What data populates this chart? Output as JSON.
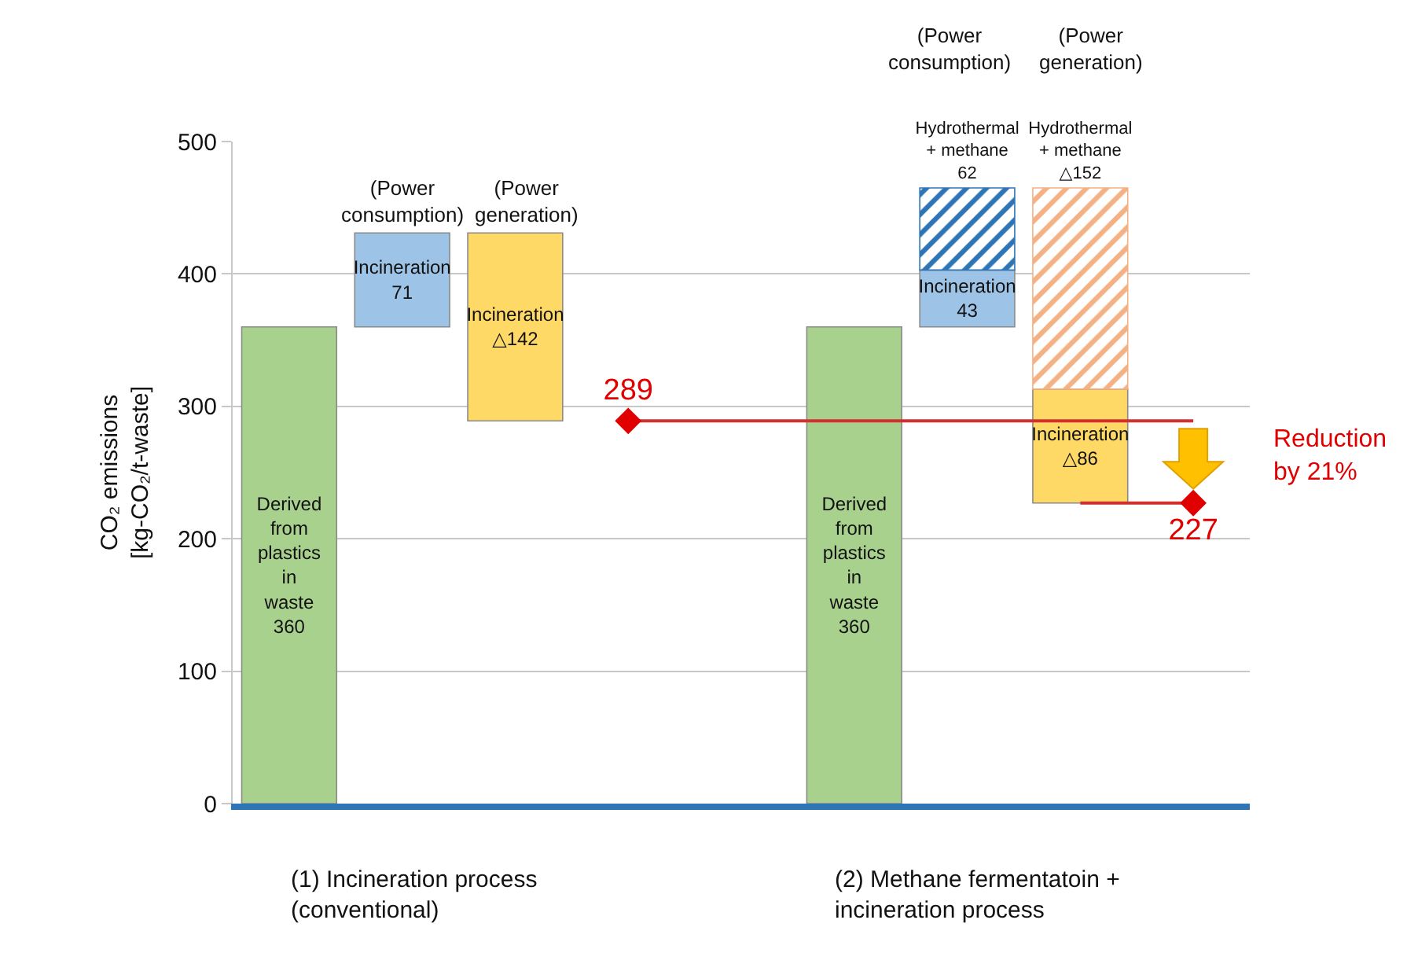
{
  "chart_data": {
    "type": "bar",
    "ylabel": "CO₂ emissions\n[kg-CO₂/t-waste]",
    "categories": [
      null,
      null,
      null,
      null,
      null,
      null,
      null,
      null,
      null
    ],
    "ylim": [
      0,
      500
    ],
    "yticks": [
      0,
      100,
      200,
      300,
      400,
      500
    ],
    "grid": "y",
    "series": [
      {
        "type": "line",
        "color": "#d32f2f",
        "line_style": "solid",
        "values": [
          null,
          null,
          null,
          289,
          289,
          289,
          289,
          289,
          289
        ]
      },
      {
        "type": "line",
        "color": "#d32f2f",
        "line_style": "solid",
        "values": [
          null,
          null,
          null,
          null,
          null,
          null,
          null,
          227,
          227
        ]
      },
      {
        "name": "Derived from plastics in waste",
        "color": "#a9d18e",
        "values": [
          360,
          null,
          null,
          null,
          null,
          360,
          null,
          null,
          null
        ],
        "base": [
          0,
          null,
          null,
          null,
          null,
          0,
          null,
          null,
          null
        ],
        "value_labels": [
          "360",
          null,
          null,
          null,
          null,
          "360",
          null,
          null,
          null
        ]
      },
      {
        "name": "Incineration",
        "color": "#9dc3e6",
        "values": [
          null,
          71,
          null,
          null,
          null,
          null,
          43,
          null,
          null
        ],
        "base": [
          null,
          360,
          null,
          null,
          null,
          null,
          360,
          null,
          null
        ],
        "value_labels": [
          null,
          "71",
          null,
          null,
          null,
          null,
          "43",
          null,
          null
        ]
      },
      {
        "name": "Incineration",
        "color": "#ffd966",
        "values": [
          null,
          null,
          142,
          null,
          null,
          null,
          null,
          86,
          null
        ],
        "base": [
          null,
          null,
          289,
          null,
          null,
          null,
          null,
          227,
          null
        ],
        "value_labels": [
          null,
          null,
          "△142",
          null,
          null,
          null,
          null,
          "△86",
          null
        ]
      },
      {
        "name": "Hydrothermal + methane",
        "color": "#2e75b6",
        "values": [
          null,
          null,
          null,
          null,
          null,
          null,
          62,
          null,
          null
        ],
        "base": [
          null,
          null,
          null,
          null,
          null,
          null,
          403,
          null,
          null
        ],
        "value_labels": [
          null,
          null,
          null,
          null,
          null,
          null,
          "62",
          null,
          null
        ]
      },
      {
        "name": "Hydrothermal + methane",
        "color": "#f4b183",
        "values": [
          null,
          null,
          null,
          null,
          null,
          null,
          null,
          152,
          null
        ],
        "base": [
          null,
          null,
          null,
          null,
          null,
          null,
          null,
          313,
          null
        ],
        "value_labels": [
          null,
          null,
          null,
          null,
          null,
          null,
          null,
          "△152",
          null
        ]
      },
      {
        "type": "scatter",
        "color": "#e00000",
        "marker": "diamond",
        "values": [
          null,
          null,
          null,
          289,
          null,
          null,
          null,
          null,
          227
        ],
        "value_labels": [
          null,
          null,
          null,
          "289",
          null,
          null,
          null,
          null,
          "227"
        ]
      }
    ],
    "annotations": [
      "(1) Incineration process\n(conventional)",
      "(2) Methane fermentatoin +\nincineration process",
      "(Power\nconsumption)",
      "(Power\ngeneration)",
      "(Power\nconsumption)",
      "(Power\ngeneration)",
      "Reduction\nby 21%"
    ]
  }
}
